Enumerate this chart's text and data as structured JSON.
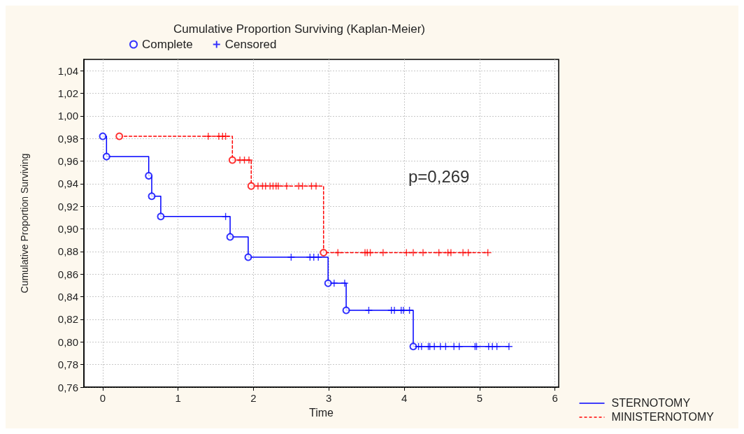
{
  "chart_data": {
    "type": "step",
    "title": "Cumulative Proportion Surviving (Kaplan-Meier)",
    "xlabel": "Time",
    "ylabel": "Cumulative Proportion Surviving",
    "annotations": [
      "p=0,269"
    ],
    "xlim": [
      -0.25,
      6.05
    ],
    "xticks": [
      0,
      1,
      2,
      3,
      4,
      5,
      6
    ],
    "ylim": [
      0.76,
      1.05
    ],
    "yticks": [
      {
        "value": 0.76,
        "label": "0,76"
      },
      {
        "value": 0.78,
        "label": "0,78"
      },
      {
        "value": 0.8,
        "label": "0,80"
      },
      {
        "value": 0.82,
        "label": "0,82"
      },
      {
        "value": 0.84,
        "label": "0,84"
      },
      {
        "value": 0.86,
        "label": "0,86"
      },
      {
        "value": 0.88,
        "label": "0,88"
      },
      {
        "value": 0.9,
        "label": "0,90"
      },
      {
        "value": 0.92,
        "label": "0,92"
      },
      {
        "value": 0.94,
        "label": "0,94"
      },
      {
        "value": 0.96,
        "label": "0,96"
      },
      {
        "value": 0.98,
        "label": "0,98"
      },
      {
        "value": 1.0,
        "label": "1,00"
      },
      {
        "value": 1.02,
        "label": "1,02"
      },
      {
        "value": 1.04,
        "label": "1,04"
      }
    ],
    "grid": true,
    "legend": "bottom right",
    "series": [
      {
        "name": "STERNOTOMY",
        "color": "#0000ff",
        "line_style": "solid",
        "marker": "none",
        "x": [
          0,
          0.05,
          0.61,
          0.65,
          0.77,
          1.69,
          1.93,
          2.99,
          3.23,
          4.12,
          5.39
        ],
        "values": [
          0.982,
          0.964,
          0.947,
          0.929,
          0.911,
          0.893,
          0.875,
          0.852,
          0.828,
          0.796,
          0.796
        ]
      },
      {
        "name": "MINISTERNOTOMY",
        "color": "#ff0000",
        "line_style": "dashed",
        "marker": "none",
        "x": [
          0.22,
          1.72,
          1.97,
          2.93,
          5.11
        ],
        "values": [
          0.982,
          0.961,
          0.938,
          0.879,
          0.879
        ]
      },
      {
        "name": "Complete",
        "type": "scatter",
        "color": "#0000ff",
        "marker": "circle",
        "x": [
          0,
          0.05,
          0.61,
          0.65,
          0.77,
          1.69,
          1.93,
          2.99,
          3.23,
          4.12,
          0.22,
          1.72,
          1.97,
          2.93
        ],
        "values": [
          0.982,
          0.964,
          0.947,
          0.929,
          0.911,
          0.893,
          0.875,
          0.852,
          0.828,
          0.796,
          0.982,
          0.961,
          0.938,
          0.879
        ],
        "colors": [
          "#0000ff",
          "#0000ff",
          "#0000ff",
          "#0000ff",
          "#0000ff",
          "#0000ff",
          "#0000ff",
          "#0000ff",
          "#0000ff",
          "#0000ff",
          "#ff0000",
          "#ff0000",
          "#ff0000",
          "#ff0000"
        ]
      },
      {
        "name": "Censored",
        "type": "scatter",
        "color": "#0000ff",
        "marker": "cross",
        "x": [
          1.63,
          2.5,
          2.75,
          2.8,
          2.86,
          3.07,
          3.21,
          3.53,
          3.83,
          3.87,
          3.96,
          3.99,
          4.07,
          4.19,
          4.23,
          4.32,
          4.34,
          4.4,
          4.48,
          4.55,
          4.66,
          4.73,
          4.94,
          4.96,
          5.12,
          5.17,
          5.23,
          5.39,
          1.4,
          1.54,
          1.59,
          1.63,
          1.82,
          1.88,
          1.94,
          2.06,
          2.12,
          2.16,
          2.22,
          2.26,
          2.3,
          2.33,
          2.44,
          2.6,
          2.65,
          2.77,
          2.83,
          3.12,
          3.48,
          3.51,
          3.55,
          3.72,
          4.03,
          4.12,
          4.25,
          4.46,
          4.58,
          4.62,
          4.78,
          4.85,
          5.11
        ],
        "values": [
          0.911,
          0.875,
          0.875,
          0.875,
          0.875,
          0.852,
          0.852,
          0.828,
          0.828,
          0.828,
          0.828,
          0.828,
          0.828,
          0.796,
          0.796,
          0.796,
          0.796,
          0.796,
          0.796,
          0.796,
          0.796,
          0.796,
          0.796,
          0.796,
          0.796,
          0.796,
          0.796,
          0.796,
          0.982,
          0.982,
          0.982,
          0.982,
          0.961,
          0.961,
          0.961,
          0.938,
          0.938,
          0.938,
          0.938,
          0.938,
          0.938,
          0.938,
          0.938,
          0.938,
          0.938,
          0.938,
          0.938,
          0.879,
          0.879,
          0.879,
          0.879,
          0.879,
          0.879,
          0.879,
          0.879,
          0.879,
          0.879,
          0.879,
          0.879,
          0.879,
          0.879
        ],
        "colors": [
          "#0000ff",
          "#0000ff",
          "#0000ff",
          "#0000ff",
          "#0000ff",
          "#0000ff",
          "#0000ff",
          "#0000ff",
          "#0000ff",
          "#0000ff",
          "#0000ff",
          "#0000ff",
          "#0000ff",
          "#0000ff",
          "#0000ff",
          "#0000ff",
          "#0000ff",
          "#0000ff",
          "#0000ff",
          "#0000ff",
          "#0000ff",
          "#0000ff",
          "#0000ff",
          "#0000ff",
          "#0000ff",
          "#0000ff",
          "#0000ff",
          "#0000ff",
          "#ff0000",
          "#ff0000",
          "#ff0000",
          "#ff0000",
          "#ff0000",
          "#ff0000",
          "#ff0000",
          "#ff0000",
          "#ff0000",
          "#ff0000",
          "#ff0000",
          "#ff0000",
          "#ff0000",
          "#ff0000",
          "#ff0000",
          "#ff0000",
          "#ff0000",
          "#ff0000",
          "#ff0000",
          "#ff0000",
          "#ff0000",
          "#ff0000",
          "#ff0000",
          "#ff0000",
          "#ff0000",
          "#ff0000",
          "#ff0000",
          "#ff0000",
          "#ff0000",
          "#ff0000",
          "#ff0000",
          "#ff0000",
          "#ff0000"
        ]
      }
    ]
  }
}
